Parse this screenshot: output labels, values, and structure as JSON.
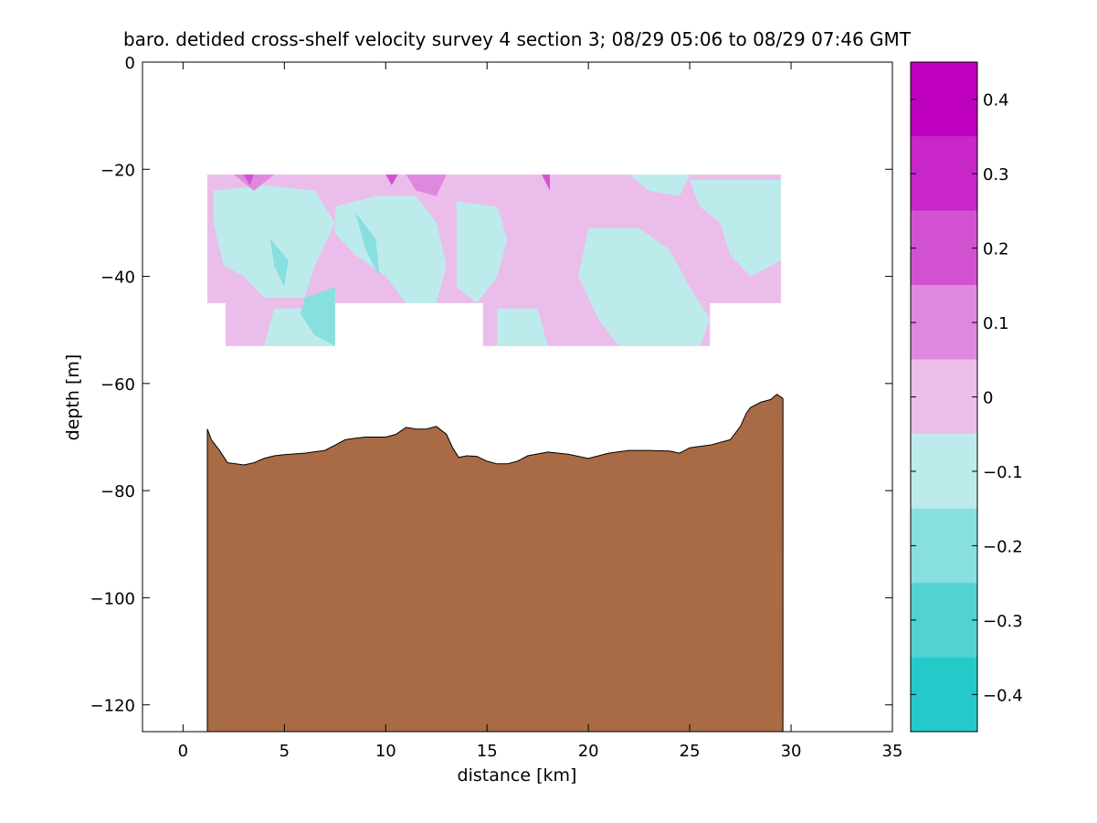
{
  "chart_data": {
    "type": "contour",
    "title": "baro. detided cross-shelf velocity survey 4 section 3; 08/29 05:06 to 08/29 07:46 GMT",
    "xlabel": "distance [km]",
    "ylabel": "depth [m]",
    "xlim": [
      -2,
      35
    ],
    "ylim": [
      -125,
      0
    ],
    "xticks": [
      0,
      5,
      10,
      15,
      20,
      25,
      30,
      35
    ],
    "yticks": [
      0,
      -20,
      -40,
      -60,
      -80,
      -100,
      -120
    ],
    "colorbar": {
      "limits": [
        -0.45,
        0.45
      ],
      "ticks": [
        0.4,
        0.3,
        0.2,
        0.1,
        0,
        -0.1,
        -0.2,
        -0.3,
        -0.4
      ],
      "levels": [
        {
          "from": 0.35,
          "to": 0.45,
          "color": "#bf00bf"
        },
        {
          "from": 0.25,
          "to": 0.35,
          "color": "#c926c9"
        },
        {
          "from": 0.15,
          "to": 0.25,
          "color": "#d252d2"
        },
        {
          "from": 0.05,
          "to": 0.15,
          "color": "#df88df"
        },
        {
          "from": -0.05,
          "to": 0.05,
          "color": "#ebbdeb"
        },
        {
          "from": -0.15,
          "to": -0.05,
          "color": "#bdebeb"
        },
        {
          "from": -0.25,
          "to": -0.15,
          "color": "#88dfdf"
        },
        {
          "from": -0.35,
          "to": -0.25,
          "color": "#52d2d2"
        },
        {
          "from": -0.45,
          "to": -0.35,
          "color": "#26c9c9"
        },
        {
          "from": -0.55,
          "to": -0.45,
          "color": "#00bfbf"
        }
      ]
    },
    "velocity_blocks": [
      {
        "x0": 1.2,
        "x1": 29.5,
        "top": -21,
        "bottom": -45,
        "value": 0
      },
      {
        "x0": 2.1,
        "x1": 7.5,
        "top": -45,
        "bottom": -53,
        "value": 0
      },
      {
        "x0": 14.8,
        "x1": 26.0,
        "top": -45,
        "bottom": -53,
        "value": 0
      },
      {
        "x0": 26.0,
        "x1": 28.8,
        "top": -37,
        "bottom": -45,
        "value": 0
      }
    ],
    "velocity_patches": [
      {
        "value": -0.1,
        "points": [
          [
            1.5,
            -24
          ],
          [
            4.0,
            -23
          ],
          [
            6.5,
            -24
          ],
          [
            7.5,
            -30
          ],
          [
            6.5,
            -38
          ],
          [
            6.0,
            -44
          ],
          [
            4.0,
            -44
          ],
          [
            3.0,
            -40
          ],
          [
            2.0,
            -38
          ],
          [
            1.5,
            -30
          ]
        ]
      },
      {
        "value": -0.1,
        "points": [
          [
            7.5,
            -27
          ],
          [
            9.5,
            -25
          ],
          [
            11.5,
            -25
          ],
          [
            12.5,
            -30
          ],
          [
            13.0,
            -38
          ],
          [
            12.5,
            -45
          ],
          [
            11.0,
            -45
          ],
          [
            10.0,
            -40
          ],
          [
            8.5,
            -36
          ],
          [
            7.5,
            -32
          ]
        ]
      },
      {
        "value": -0.1,
        "points": [
          [
            13.5,
            -26
          ],
          [
            15.5,
            -27
          ],
          [
            16.0,
            -33
          ],
          [
            15.5,
            -40
          ],
          [
            14.5,
            -45
          ],
          [
            13.5,
            -42
          ]
        ]
      },
      {
        "value": -0.1,
        "points": [
          [
            20.0,
            -31
          ],
          [
            22.5,
            -31
          ],
          [
            24.0,
            -35
          ],
          [
            25.0,
            -42
          ],
          [
            26.0,
            -48
          ],
          [
            25.5,
            -53
          ],
          [
            21.5,
            -53
          ],
          [
            20.5,
            -48
          ],
          [
            19.5,
            -40
          ]
        ]
      },
      {
        "value": -0.1,
        "points": [
          [
            25.0,
            -22
          ],
          [
            29.5,
            -22
          ],
          [
            29.5,
            -37
          ],
          [
            28.0,
            -40
          ],
          [
            27.0,
            -36
          ],
          [
            26.5,
            -30
          ],
          [
            25.5,
            -27
          ]
        ]
      },
      {
        "value": -0.1,
        "points": [
          [
            22.0,
            -21
          ],
          [
            25.0,
            -21
          ],
          [
            24.5,
            -25
          ],
          [
            23.0,
            -24
          ]
        ]
      },
      {
        "value": -0.1,
        "points": [
          [
            4.5,
            -46
          ],
          [
            7.5,
            -46
          ],
          [
            7.5,
            -53
          ],
          [
            4.0,
            -53
          ]
        ]
      },
      {
        "value": -0.1,
        "points": [
          [
            15.5,
            -46
          ],
          [
            17.5,
            -46
          ],
          [
            18.0,
            -53
          ],
          [
            15.5,
            -53
          ]
        ]
      },
      {
        "value": -0.2,
        "points": [
          [
            8.5,
            -28
          ],
          [
            9.5,
            -33
          ],
          [
            9.7,
            -40
          ],
          [
            9.0,
            -35
          ]
        ]
      },
      {
        "value": -0.2,
        "points": [
          [
            4.3,
            -33
          ],
          [
            5.2,
            -37
          ],
          [
            5.0,
            -42
          ],
          [
            4.5,
            -38
          ]
        ]
      },
      {
        "value": -0.2,
        "points": [
          [
            6.0,
            -44
          ],
          [
            7.5,
            -42
          ],
          [
            7.5,
            -53
          ],
          [
            6.5,
            -51
          ],
          [
            5.8,
            -47
          ]
        ]
      },
      {
        "value": 0.1,
        "points": [
          [
            11.0,
            -21
          ],
          [
            13.0,
            -21
          ],
          [
            12.5,
            -25
          ],
          [
            11.5,
            -24
          ]
        ]
      },
      {
        "value": 0.1,
        "points": [
          [
            2.5,
            -21
          ],
          [
            4.5,
            -21
          ],
          [
            3.5,
            -24
          ]
        ]
      },
      {
        "value": 0.2,
        "points": [
          [
            3.0,
            -21
          ],
          [
            3.5,
            -21
          ],
          [
            3.3,
            -23
          ]
        ]
      },
      {
        "value": 0.2,
        "points": [
          [
            10.0,
            -21
          ],
          [
            10.6,
            -21
          ],
          [
            10.3,
            -23
          ]
        ]
      },
      {
        "value": 0.2,
        "points": [
          [
            17.7,
            -21
          ],
          [
            18.1,
            -21
          ],
          [
            18.1,
            -24
          ]
        ]
      }
    ],
    "bathymetry": {
      "x": [
        1.2,
        1.4,
        1.8,
        2.2,
        2.6,
        3.0,
        3.5,
        4.0,
        4.5,
        5.0,
        6.0,
        7.0,
        7.5,
        8.0,
        8.5,
        9.0,
        10.0,
        10.5,
        11.0,
        11.5,
        12.0,
        12.5,
        13.0,
        13.3,
        13.6,
        14.0,
        14.5,
        15.0,
        15.5,
        16.0,
        16.5,
        17.0,
        18.0,
        19.0,
        20.0,
        21.0,
        22.0,
        23.0,
        24.0,
        24.5,
        25.0,
        26.0,
        27.0,
        27.5,
        27.8,
        28.0,
        28.5,
        29.0,
        29.3,
        29.6
      ],
      "y": [
        -68.5,
        -70.5,
        -72.5,
        -74.8,
        -75.0,
        -75.2,
        -74.8,
        -74.0,
        -73.5,
        -73.3,
        -73.0,
        -72.5,
        -71.5,
        -70.5,
        -70.2,
        -70.0,
        -70.0,
        -69.5,
        -68.2,
        -68.5,
        -68.5,
        -68.0,
        -69.5,
        -72.0,
        -73.8,
        -73.5,
        -73.6,
        -74.5,
        -75.0,
        -75.0,
        -74.5,
        -73.5,
        -72.8,
        -73.2,
        -74.0,
        -73.0,
        -72.5,
        -72.5,
        -72.6,
        -73.0,
        -72.0,
        -71.5,
        -70.5,
        -68.0,
        -65.5,
        -64.5,
        -63.5,
        -63.0,
        -62.0,
        -62.8
      ]
    }
  }
}
